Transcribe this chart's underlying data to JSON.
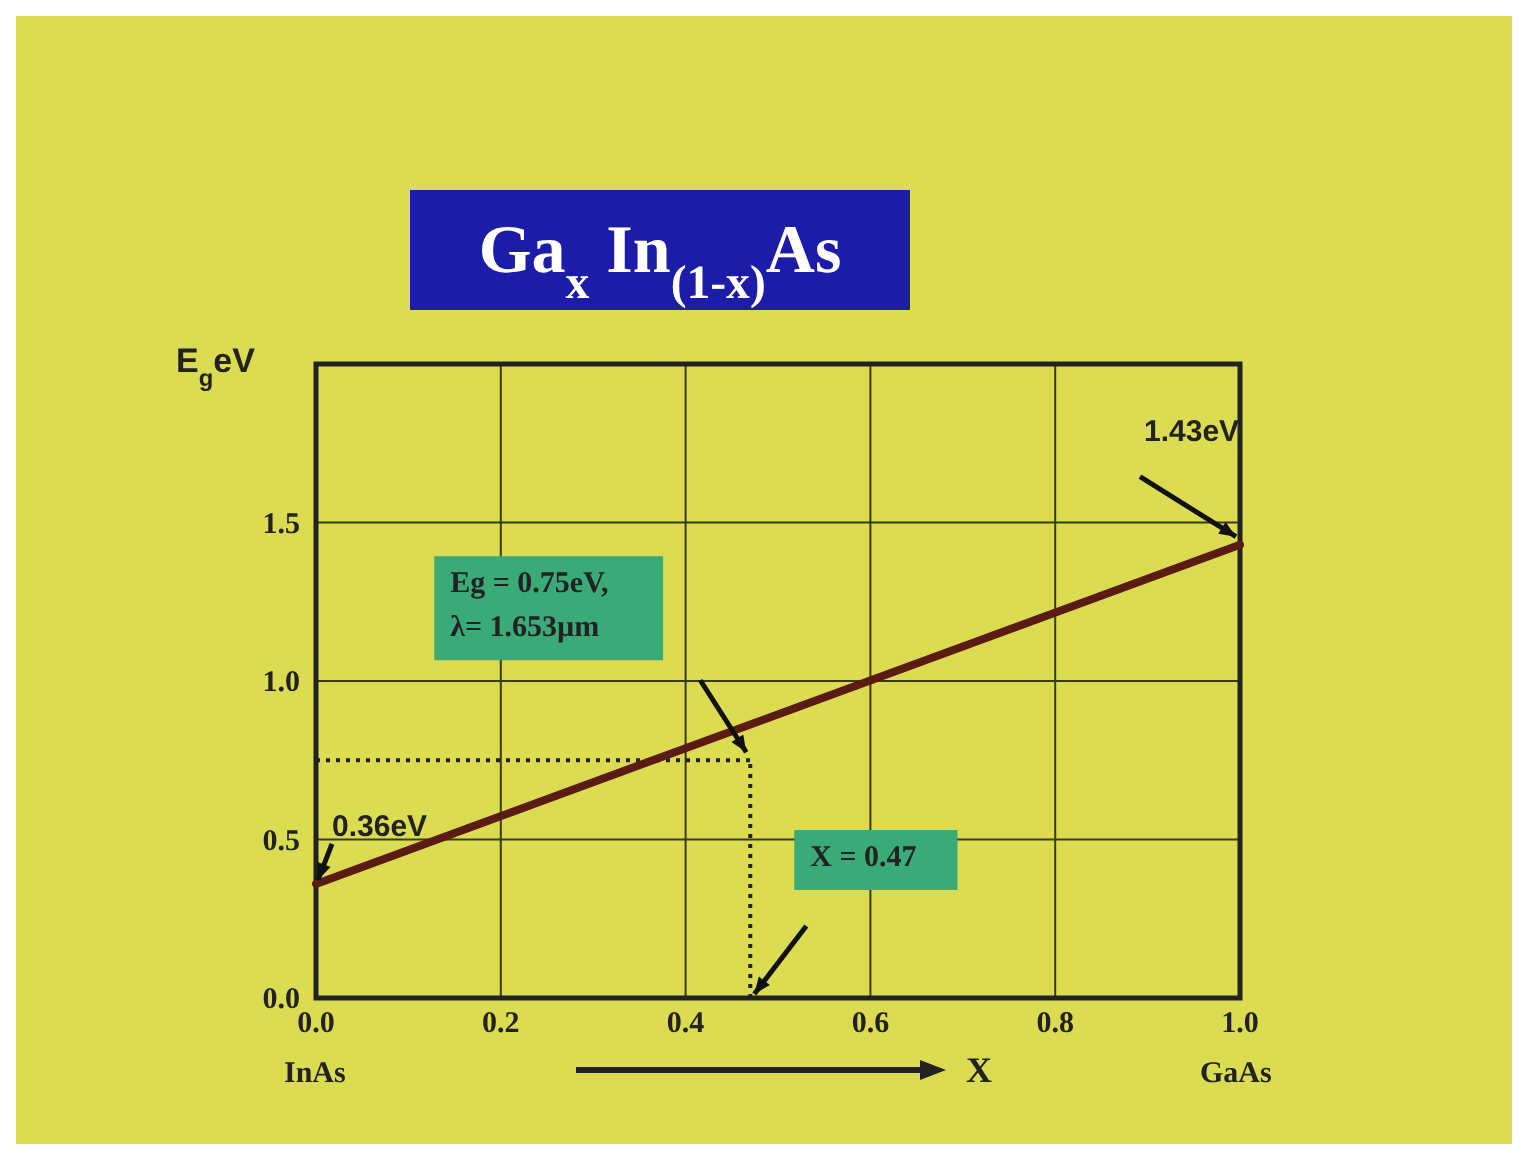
{
  "chart_data": {
    "type": "line",
    "title": "Ga$_{x}$ In$_{(1-x)}$As",
    "xlabel": "X",
    "ylabel": "E$_{g}$eV",
    "x": [
      0,
      1
    ],
    "series": [
      {
        "color": "#5a1c12",
        "values": [
          0.36,
          1.43
        ]
      }
    ],
    "xlim": [
      0,
      1
    ],
    "ylim": [
      0,
      2
    ],
    "xticks": [
      {
        "value": 0,
        "label": "0.0"
      },
      {
        "value": 0.2,
        "label": "0.2"
      },
      {
        "value": 0.4,
        "label": "0.4"
      },
      {
        "value": 0.6,
        "label": "0.6"
      },
      {
        "value": 0.8,
        "label": "0.8"
      },
      {
        "value": 1,
        "label": "1.0"
      }
    ],
    "yticks": [
      {
        "value": 0,
        "label": "0.0"
      },
      0.5,
      {
        "value": 1,
        "label": "1.0"
      },
      1.5,
      {
        "value": 2,
        "label": null
      }
    ],
    "grid": true,
    "marker": "none",
    "line_style": "solid",
    "ref_lines": [
      {
        "axis": "y",
        "value": 0.75,
        "line_style": "dotted",
        "color": "#222222"
      },
      {
        "axis": "x",
        "value": 0.47,
        "line_style": "dotted",
        "color": "#222222"
      }
    ],
    "annotations": [
      {
        "text": "1.43eV",
        "x": 1,
        "y": 1.43
      },
      {
        "text": "0.36eV",
        "x": 0,
        "y": 0.36
      },
      "Eg = 0.75eV,\nλ= 1.653µm",
      "X = 0.47",
      "InAs",
      "GaAs"
    ]
  }
}
